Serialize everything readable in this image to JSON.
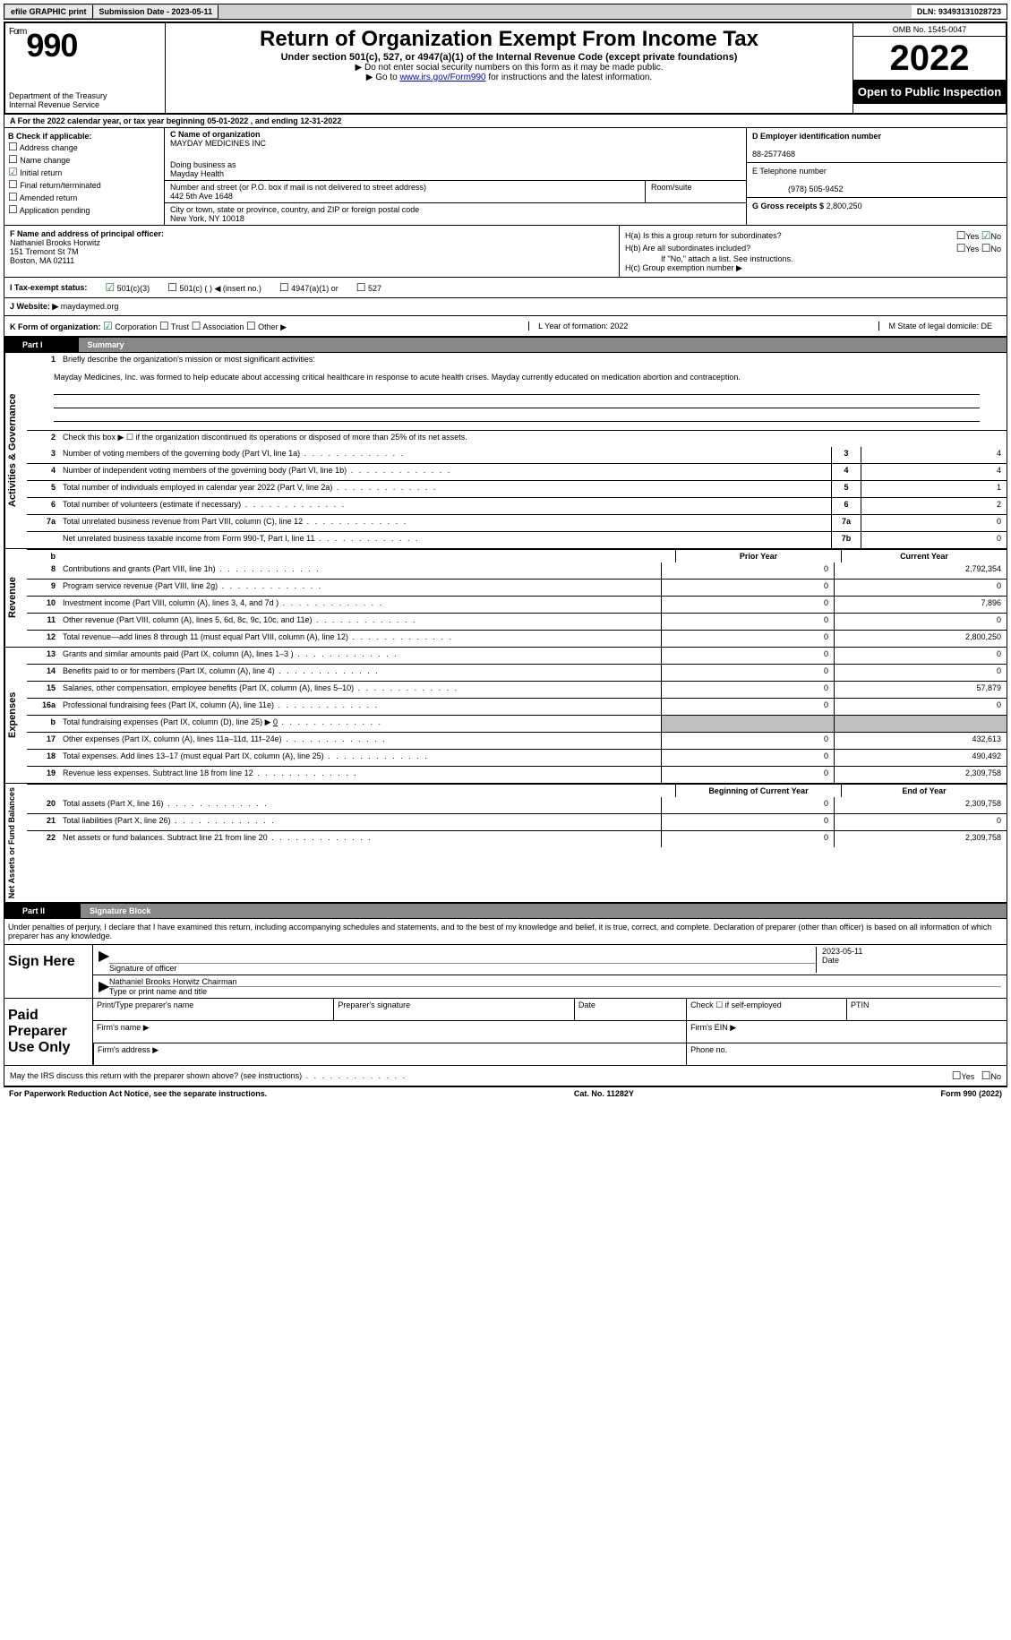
{
  "top_bar": {
    "efile": "efile GRAPHIC print",
    "submission_label": "Submission Date - 2023-05-11",
    "dln_label": "DLN: 93493131028723"
  },
  "header": {
    "form_word": "Form",
    "form_num": "990",
    "dept1": "Department of the Treasury",
    "dept2": "Internal Revenue Service",
    "title": "Return of Organization Exempt From Income Tax",
    "subtitle": "Under section 501(c), 527, or 4947(a)(1) of the Internal Revenue Code (except private foundations)",
    "note1": "▶ Do not enter social security numbers on this form as it may be made public.",
    "note2_pre": "▶ Go to ",
    "note2_link": "www.irs.gov/Form990",
    "note2_post": " for instructions and the latest information.",
    "omb": "OMB No. 1545-0047",
    "year": "2022",
    "open": "Open to Public Inspection"
  },
  "row_a": "A For the 2022 calendar year, or tax year beginning 05-01-2022    , and ending 12-31-2022",
  "col_b": {
    "title": "B Check if applicable:",
    "items": [
      "Address change",
      "Name change",
      "Initial return",
      "Final return/terminated",
      "Amended return",
      "Application pending"
    ],
    "checked_index": 2
  },
  "col_c": {
    "name_label": "C Name of organization",
    "name": "MAYDAY MEDICINES INC",
    "dba_label": "Doing business as",
    "dba": "Mayday Health",
    "addr_label": "Number and street (or P.O. box if mail is not delivered to street address)",
    "addr": "442 5th Ave 1648",
    "room_label": "Room/suite",
    "city_label": "City or town, state or province, country, and ZIP or foreign postal code",
    "city": "New York, NY  10018"
  },
  "col_d": {
    "ein_label": "D Employer identification number",
    "ein": "88-2577468",
    "phone_label": "E Telephone number",
    "phone": "(978) 505-9452",
    "gross_label": "G Gross receipts $",
    "gross": "2,800,250"
  },
  "col_f": {
    "label": "F Name and address of principal officer:",
    "name": "Nathaniel Brooks Horwitz",
    "addr1": "151 Tremont St 7M",
    "addr2": "Boston, MA  02111"
  },
  "col_h": {
    "ha": "H(a)  Is this a group return for subordinates?",
    "hb": "H(b)  Are all subordinates included?",
    "hb_note": "If \"No,\" attach a list. See instructions.",
    "hc": "H(c)  Group exemption number ▶"
  },
  "tax_status": {
    "label": "I   Tax-exempt status:",
    "opt1": "501(c)(3)",
    "opt2": "501(c) (  ) ◀ (insert no.)",
    "opt3": "4947(a)(1) or",
    "opt4": "527"
  },
  "website": {
    "label": "J   Website: ▶",
    "value": "maydaymed.org"
  },
  "row_k": {
    "label": "K Form of organization:",
    "opts": [
      "Corporation",
      "Trust",
      "Association",
      "Other ▶"
    ],
    "l_label": "L Year of formation: 2022",
    "m_label": "M State of legal domicile: DE"
  },
  "part1": {
    "num": "Part I",
    "title": "Summary",
    "line1_label": "Briefly describe the organization's mission or most significant activities:",
    "mission": "Mayday Medicines, Inc. was formed to help educate about accessing critical healthcare in response to acute health crises. Mayday currently educated on medication abortion and contraception.",
    "line2": "Check this box ▶ ☐  if the organization discontinued its operations or disposed of more than 25% of its net assets.",
    "lines_gov": [
      {
        "n": "3",
        "label": "Number of voting members of the governing body (Part VI, line 1a)",
        "box": "3",
        "val": "4"
      },
      {
        "n": "4",
        "label": "Number of independent voting members of the governing body (Part VI, line 1b)",
        "box": "4",
        "val": "4"
      },
      {
        "n": "5",
        "label": "Total number of individuals employed in calendar year 2022 (Part V, line 2a)",
        "box": "5",
        "val": "1"
      },
      {
        "n": "6",
        "label": "Total number of volunteers (estimate if necessary)",
        "box": "6",
        "val": "2"
      },
      {
        "n": "7a",
        "label": "Total unrelated business revenue from Part VIII, column (C), line 12",
        "box": "7a",
        "val": "0"
      },
      {
        "n": "",
        "label": "Net unrelated business taxable income from Form 990-T, Part I, line 11",
        "box": "7b",
        "val": "0"
      }
    ],
    "prior_year": "Prior Year",
    "current_year": "Current Year",
    "lines_rev": [
      {
        "n": "8",
        "label": "Contributions and grants (Part VIII, line 1h)",
        "py": "0",
        "cy": "2,792,354"
      },
      {
        "n": "9",
        "label": "Program service revenue (Part VIII, line 2g)",
        "py": "0",
        "cy": "0"
      },
      {
        "n": "10",
        "label": "Investment income (Part VIII, column (A), lines 3, 4, and 7d )",
        "py": "0",
        "cy": "7,896"
      },
      {
        "n": "11",
        "label": "Other revenue (Part VIII, column (A), lines 5, 6d, 8c, 9c, 10c, and 11e)",
        "py": "0",
        "cy": "0"
      },
      {
        "n": "12",
        "label": "Total revenue—add lines 8 through 11 (must equal Part VIII, column (A), line 12)",
        "py": "0",
        "cy": "2,800,250"
      }
    ],
    "lines_exp": [
      {
        "n": "13",
        "label": "Grants and similar amounts paid (Part IX, column (A), lines 1–3 )",
        "py": "0",
        "cy": "0"
      },
      {
        "n": "14",
        "label": "Benefits paid to or for members (Part IX, column (A), line 4)",
        "py": "0",
        "cy": "0"
      },
      {
        "n": "15",
        "label": "Salaries, other compensation, employee benefits (Part IX, column (A), lines 5–10)",
        "py": "0",
        "cy": "57,879"
      },
      {
        "n": "16a",
        "label": "Professional fundraising fees (Part IX, column (A), line 11e)",
        "py": "0",
        "cy": "0"
      },
      {
        "n": "b",
        "label": "Total fundraising expenses (Part IX, column (D), line 25) ▶",
        "py": "shaded",
        "cy": "shaded",
        "extra": "0"
      },
      {
        "n": "17",
        "label": "Other expenses (Part IX, column (A), lines 11a–11d, 11f–24e)",
        "py": "0",
        "cy": "432,613"
      },
      {
        "n": "18",
        "label": "Total expenses. Add lines 13–17 (must equal Part IX, column (A), line 25)",
        "py": "0",
        "cy": "490,492"
      },
      {
        "n": "19",
        "label": "Revenue less expenses. Subtract line 18 from line 12",
        "py": "0",
        "cy": "2,309,758"
      }
    ],
    "begin_year": "Beginning of Current Year",
    "end_year": "End of Year",
    "lines_net": [
      {
        "n": "20",
        "label": "Total assets (Part X, line 16)",
        "py": "0",
        "cy": "2,309,758"
      },
      {
        "n": "21",
        "label": "Total liabilities (Part X, line 26)",
        "py": "0",
        "cy": "0"
      },
      {
        "n": "22",
        "label": "Net assets or fund balances. Subtract line 21 from line 20",
        "py": "0",
        "cy": "2,309,758"
      }
    ]
  },
  "part2": {
    "num": "Part II",
    "title": "Signature Block",
    "decl": "Under penalties of perjury, I declare that I have examined this return, including accompanying schedules and statements, and to the best of my knowledge and belief, it is true, correct, and complete. Declaration of preparer (other than officer) is based on all information of which preparer has any knowledge.",
    "sign_here": "Sign Here",
    "sig_officer": "Signature of officer",
    "sig_date": "2023-05-11",
    "date_label": "Date",
    "officer_name": "Nathaniel Brooks Horwitz Chairman",
    "type_name": "Type or print name and title",
    "paid_prep": "Paid Preparer Use Only",
    "prep_name": "Print/Type preparer's name",
    "prep_sig": "Preparer's signature",
    "prep_date": "Date",
    "prep_check": "Check ☐ if self-employed",
    "ptin": "PTIN",
    "firm_name": "Firm's name    ▶",
    "firm_ein": "Firm's EIN ▶",
    "firm_addr": "Firm's address ▶",
    "firm_phone": "Phone no.",
    "may_irs": "May the IRS discuss this return with the preparer shown above? (see instructions)"
  },
  "footer": {
    "left": "For Paperwork Reduction Act Notice, see the separate instructions.",
    "mid": "Cat. No. 11282Y",
    "right": "Form 990 (2022)"
  }
}
